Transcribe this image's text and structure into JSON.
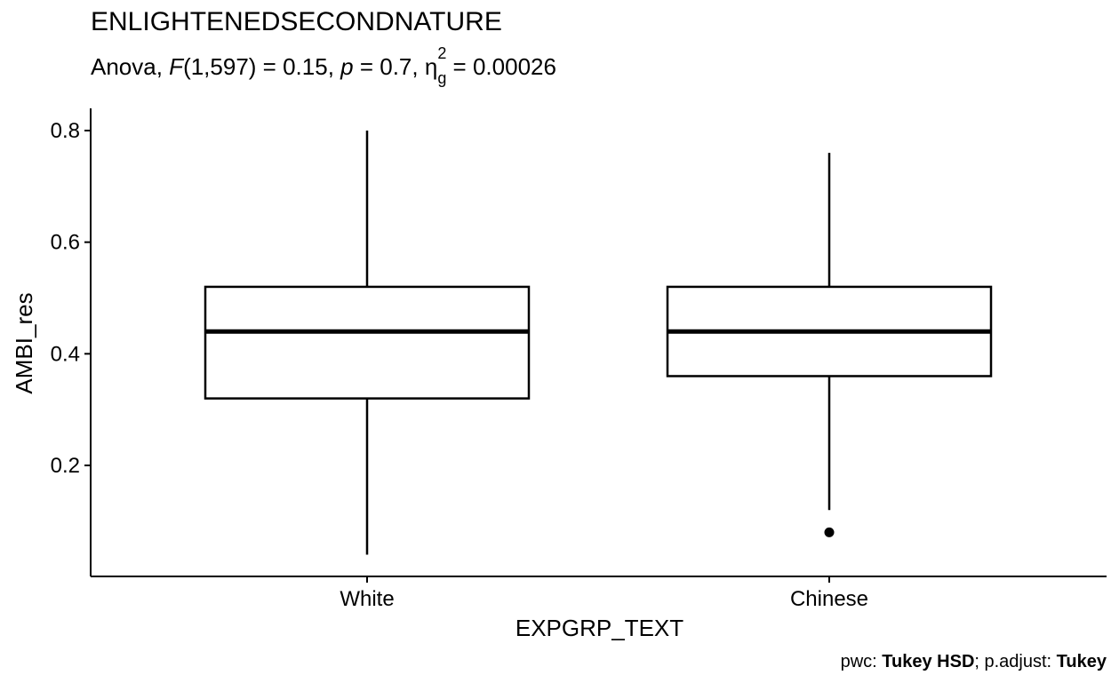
{
  "chart_data": {
    "type": "boxplot",
    "title": "ENLIGHTENEDSECONDNATURE",
    "subtitle": {
      "prefix": "Anova, ",
      "F_symbol": "F",
      "df": "(1,597)",
      "F_value": " = 0.15, ",
      "p_symbol": "p",
      "p_value": " = 0.7, ",
      "eta_symbol": "η",
      "eta_sup": "2",
      "eta_sub": "g",
      "eta_value": " = 0.00026"
    },
    "xlabel": "EXPGRP_TEXT",
    "ylabel": "AMBI_res",
    "ylim": [
      0.0,
      0.84
    ],
    "yticks": [
      0.2,
      0.4,
      0.6,
      0.8
    ],
    "ytick_labels": [
      "0.2",
      "0.4",
      "0.6",
      "0.8"
    ],
    "grid": false,
    "categories": [
      "White",
      "Chinese"
    ],
    "boxes": [
      {
        "category": "White",
        "whisker_low": 0.04,
        "q1": 0.32,
        "median": 0.44,
        "q3": 0.52,
        "whisker_high": 0.8,
        "outliers": []
      },
      {
        "category": "Chinese",
        "whisker_low": 0.12,
        "q1": 0.36,
        "median": 0.44,
        "q3": 0.52,
        "whisker_high": 0.76,
        "outliers": [
          0.08
        ]
      }
    ]
  },
  "caption": {
    "pwc_label": "pwc: ",
    "pwc_value": "Tukey HSD",
    "sep": "; p.adjust: ",
    "padjust_value": "Tukey"
  }
}
